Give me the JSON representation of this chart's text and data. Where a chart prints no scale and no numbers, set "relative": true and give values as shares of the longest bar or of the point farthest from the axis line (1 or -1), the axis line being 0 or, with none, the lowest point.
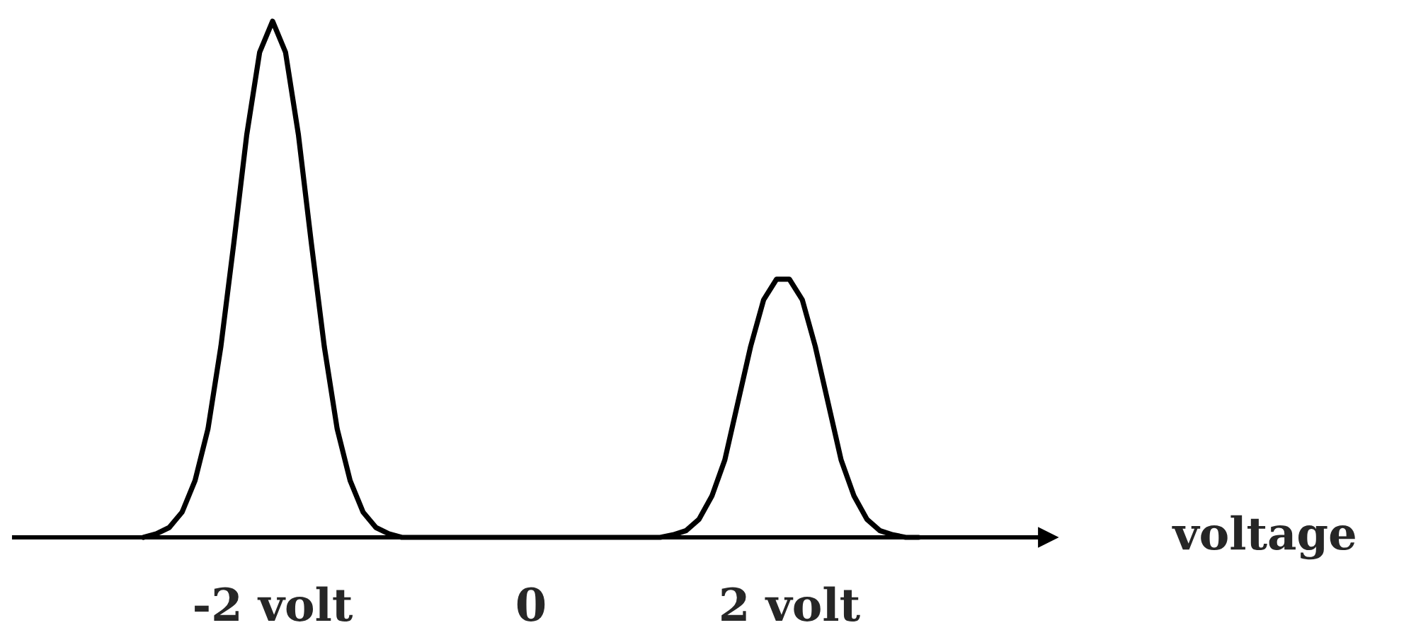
{
  "chart_data": {
    "type": "line",
    "relative": true,
    "xlabel": "voltage",
    "xlim": [
      -4,
      4
    ],
    "xticks": [
      {
        "value": -2,
        "label": "-2 volt"
      },
      0,
      {
        "value": 2,
        "label": "2 volt"
      }
    ],
    "tick_labels": "x",
    "grid": false,
    "marker": "none",
    "line_style": "solid",
    "series": [
      {
        "color": "#000000",
        "x": [
          -3,
          -2.9,
          -2.8,
          -2.7,
          -2.6,
          -2.5,
          -2.4,
          -2.3,
          -2.2,
          -2.1,
          -2,
          -1.9,
          -1.8,
          -1.7,
          -1.6,
          -1.5,
          -1.4,
          -1.3,
          -1.2,
          -1.1,
          -1,
          1,
          1.1,
          1.2,
          1.3,
          1.4,
          1.5,
          1.6,
          1.7,
          1.8,
          1.9,
          2,
          2.1,
          2.2,
          2.3,
          2.4,
          2.5,
          2.6,
          2.7,
          2.8,
          2.9,
          3
        ],
        "values": [
          0,
          0.007,
          0.019,
          0.049,
          0.11,
          0.21,
          0.37,
          0.57,
          0.78,
          0.94,
          1,
          0.94,
          0.78,
          0.57,
          0.37,
          0.21,
          0.11,
          0.049,
          0.019,
          0.007,
          0,
          0,
          0.005,
          0.013,
          0.035,
          0.08,
          0.15,
          0.26,
          0.37,
          0.46,
          0.5,
          0.5,
          0.46,
          0.37,
          0.26,
          0.15,
          0.08,
          0.035,
          0.013,
          0.005,
          0,
          0
        ]
      }
    ]
  }
}
